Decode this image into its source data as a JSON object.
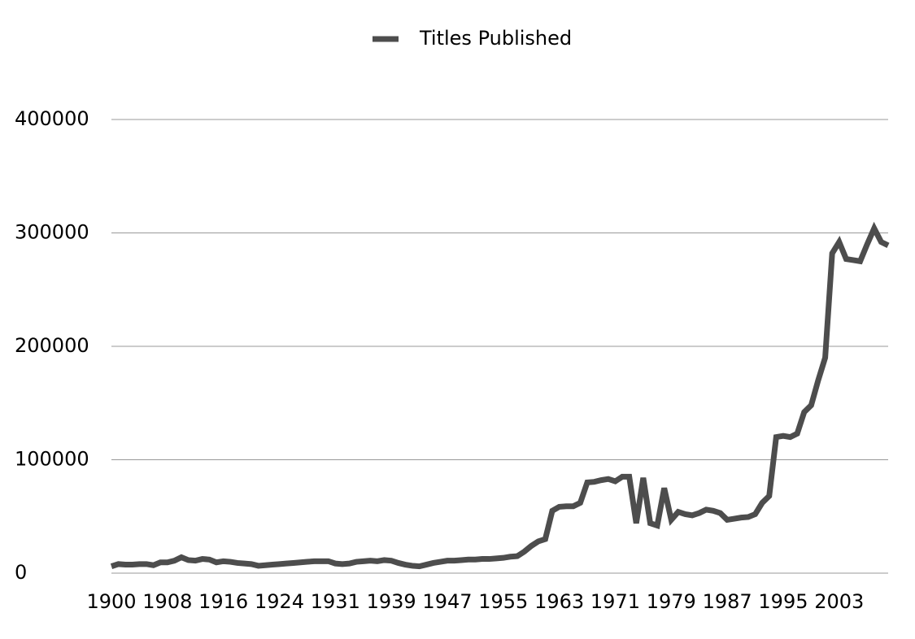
{
  "chart_data": {
    "type": "line",
    "categories": [
      "1900",
      null,
      null,
      null,
      null,
      null,
      null,
      null,
      "1908",
      null,
      null,
      null,
      null,
      null,
      null,
      null,
      "1916",
      null,
      null,
      null,
      null,
      null,
      null,
      null,
      "1924",
      null,
      null,
      null,
      null,
      null,
      null,
      null,
      "1931",
      null,
      null,
      null,
      null,
      null,
      null,
      null,
      "1939",
      null,
      null,
      null,
      null,
      null,
      null,
      null,
      "1947",
      null,
      null,
      null,
      null,
      null,
      null,
      null,
      "1955",
      null,
      null,
      null,
      null,
      null,
      null,
      null,
      "1963",
      null,
      null,
      null,
      null,
      null,
      null,
      null,
      "1971",
      null,
      null,
      null,
      null,
      null,
      null,
      null,
      "1979",
      null,
      null,
      null,
      null,
      null,
      null,
      null,
      "1987",
      null,
      null,
      null,
      null,
      null,
      null,
      null,
      "1995",
      null,
      null,
      null,
      null,
      null,
      null,
      null,
      "2003",
      null,
      null,
      null,
      null,
      null,
      null,
      null
    ],
    "series": [
      {
        "name": "Titles Published",
        "color": "#4d4d4d",
        "values": [
          6000,
          8000,
          7500,
          7500,
          8000,
          8000,
          7000,
          9500,
          9500,
          11000,
          14000,
          11500,
          11000,
          12500,
          12000,
          9500,
          10500,
          10000,
          9000,
          8500,
          8000,
          6500,
          7000,
          7500,
          8000,
          8500,
          9000,
          9500,
          10000,
          10500,
          10500,
          10500,
          8500,
          8000,
          8500,
          10000,
          10500,
          11000,
          10500,
          11500,
          11000,
          9000,
          7500,
          6500,
          6000,
          7500,
          9000,
          10000,
          11000,
          11000,
          11500,
          12000,
          12000,
          12500,
          12500,
          13000,
          13500,
          14500,
          15000,
          19000,
          24000,
          28000,
          30000,
          55000,
          58500,
          59000,
          59000,
          62000,
          80000,
          80500,
          82000,
          83000,
          81000,
          85000,
          85000,
          44000,
          84000,
          44000,
          42000,
          75000,
          47000,
          54000,
          52000,
          51000,
          53000,
          56000,
          55000,
          53000,
          47000,
          48000,
          49000,
          49500,
          52000,
          62000,
          68000,
          120000,
          121000,
          120000,
          123000,
          142000,
          148000,
          170000,
          190000,
          282000,
          292000,
          277000,
          276000,
          275000,
          290000,
          304000,
          292000,
          289000
        ]
      }
    ],
    "ylim": [
      0,
      400000
    ],
    "yticks": [
      0,
      100000,
      200000,
      300000,
      400000
    ],
    "grid": true,
    "legend": "top"
  }
}
